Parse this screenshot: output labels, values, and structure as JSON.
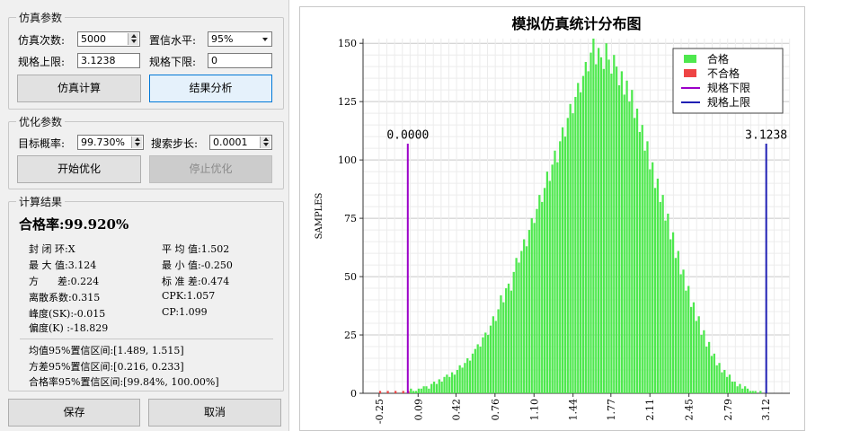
{
  "sim_params": {
    "title": "仿真参数",
    "count_label": "仿真次数:",
    "count_value": "5000",
    "confidence_label": "置信水平:",
    "confidence_value": "95%",
    "upper_label": "规格上限:",
    "upper_value": "3.1238",
    "lower_label": "规格下限:",
    "lower_value": "0",
    "sim_button": "仿真计算",
    "analyze_button": "结果分析"
  },
  "opt_params": {
    "title": "优化参数",
    "target_label": "目标概率:",
    "target_value": "99.730%",
    "step_label": "搜索步长:",
    "step_value": "0.0001",
    "start_button": "开始优化",
    "stop_button": "停止优化"
  },
  "results": {
    "title": "计算结果",
    "pass_rate": "合格率:99.920%",
    "loop": "封 闭 环:X",
    "mean": "平 均 值:1.502",
    "max": "最 大 值:3.124",
    "min": "最 小 值:-0.250",
    "variance": "方      差:0.224",
    "std": "标 准 差:0.474",
    "dispersion": "离散系数:0.315",
    "cpk": "CPK:1.057",
    "kurtosis": "峰度(SK):-0.015",
    "cp": "CP:1.099",
    "skewness": "偏度(K) :-18.829",
    "mean_ci": "均值95%置信区间:[1.489, 1.515]",
    "var_ci": "方差95%置信区间:[0.216, 0.233]",
    "rate_ci": "合格率95%置信区间:[99.84%, 100.00%]"
  },
  "footer": {
    "save_button": "保存",
    "cancel_button": "取消"
  },
  "colors": {
    "pass": "#4ee84e",
    "fail": "#ee4444",
    "lower_limit": "#9b00c8",
    "upper_limit": "#1f1fb4"
  },
  "chart_data": {
    "type": "bar",
    "title": "模拟仿真统计分布图",
    "xlabel": "",
    "ylabel": "SAMPLES",
    "xlim": [
      -0.39,
      3.33
    ],
    "ylim": [
      0,
      152
    ],
    "x_ticks": [
      "-0.25",
      "0.09",
      "0.42",
      "0.76",
      "1.10",
      "1.44",
      "1.77",
      "2.11",
      "2.45",
      "2.79",
      "3.12"
    ],
    "y_ticks": [
      "0",
      "25",
      "50",
      "75",
      "100",
      "125",
      "150"
    ],
    "grid": true,
    "legend_position": "top-right",
    "legend": [
      "合格",
      "不合格",
      "规格下限",
      "规格上限"
    ],
    "bin_start": -0.25,
    "bin_width": 0.0224,
    "counts": [
      1,
      0,
      0,
      1,
      0,
      0,
      1,
      0,
      0,
      1,
      0,
      1,
      2,
      1,
      1,
      2,
      2,
      3,
      3,
      2,
      4,
      5,
      4,
      6,
      5,
      7,
      8,
      7,
      9,
      8,
      10,
      12,
      11,
      13,
      15,
      14,
      17,
      19,
      21,
      20,
      24,
      26,
      25,
      29,
      33,
      31,
      36,
      42,
      39,
      45,
      47,
      44,
      52,
      58,
      56,
      61,
      66,
      63,
      70,
      75,
      73,
      79,
      85,
      82,
      88,
      95,
      91,
      98,
      104,
      99,
      108,
      114,
      110,
      118,
      124,
      120,
      127,
      133,
      129,
      136,
      142,
      138,
      146,
      152,
      141,
      148,
      144,
      139,
      150,
      143,
      137,
      145,
      140,
      132,
      138,
      128,
      134,
      125,
      130,
      118,
      122,
      112,
      115,
      104,
      108,
      96,
      99,
      88,
      92,
      82,
      85,
      74,
      77,
      66,
      69,
      58,
      61,
      51,
      53,
      44,
      46,
      37,
      39,
      31,
      33,
      25,
      27,
      20,
      22,
      16,
      17,
      12,
      13,
      9,
      10,
      7,
      8,
      5,
      5,
      3,
      4,
      2,
      3,
      2,
      1,
      1,
      1,
      0,
      1
    ],
    "fail_bins": [
      0,
      3,
      6,
      9,
      11
    ],
    "limits": {
      "lower": {
        "value": 0.0,
        "label": "0.0000"
      },
      "upper": {
        "value": 3.1238,
        "label": "3.1238"
      }
    }
  }
}
